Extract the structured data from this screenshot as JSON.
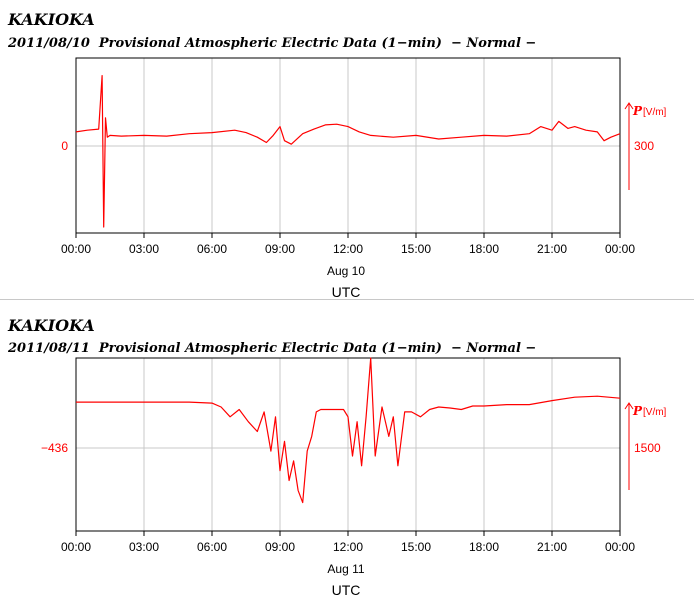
{
  "charts": [
    {
      "station": "KAKIOKA",
      "subtitle": "2011/08/10  Provisional Atmospheric Electric Data (1−min)  − Normal −",
      "date_label": "Aug 10",
      "xlabel": "UTC",
      "baseline_label": "0",
      "scale_label": "300",
      "param": "P",
      "unit": "[V/m]",
      "color": "#ff0000"
    },
    {
      "station": "KAKIOKA",
      "subtitle": "2011/08/11  Provisional Atmospheric Electric Data (1−min)  − Normal −",
      "date_label": "Aug 11",
      "xlabel": "UTC",
      "baseline_label": "−436",
      "scale_label": "1500",
      "param": "P",
      "unit": "[V/m]",
      "color": "#ff0000"
    }
  ],
  "chart_data": [
    {
      "type": "line",
      "title": "2011/08/10  Provisional Atmospheric Electric Data (1−min)  − Normal −",
      "xlabel": "UTC",
      "ylabel": "P [V/m]",
      "x_ticks": [
        "00:00",
        "03:00",
        "06:00",
        "09:00",
        "12:00",
        "15:00",
        "18:00",
        "21:00",
        "00:00"
      ],
      "xlim_hours": [
        0,
        24
      ],
      "baseline_value": 0,
      "scale_bar": 300,
      "ylim": [
        -280,
        250
      ],
      "grid": true,
      "series": [
        {
          "x_hours": [
            0,
            0.5,
            1.0,
            1.15,
            1.22,
            1.3,
            1.38,
            1.5,
            2,
            3,
            4,
            5,
            6,
            7,
            7.5,
            8,
            8.4,
            8.7,
            9.0,
            9.2,
            9.5,
            10,
            10.5,
            11,
            11.5,
            12,
            12.5,
            13,
            14,
            15,
            16,
            17,
            18,
            19,
            20,
            20.5,
            21,
            21.3,
            21.7,
            22,
            22.5,
            23,
            23.3,
            23.6,
            24
          ],
          "values": [
            40,
            45,
            48,
            200,
            -230,
            80,
            25,
            30,
            28,
            30,
            28,
            35,
            38,
            45,
            38,
            25,
            10,
            30,
            55,
            15,
            5,
            35,
            48,
            60,
            62,
            55,
            40,
            30,
            25,
            30,
            20,
            25,
            30,
            28,
            35,
            55,
            45,
            70,
            50,
            55,
            45,
            40,
            15,
            25,
            35
          ]
        }
      ]
    },
    {
      "type": "line",
      "title": "2011/08/11  Provisional Atmospheric Electric Data (1−min)  − Normal −",
      "xlabel": "UTC",
      "ylabel": "P [V/m]",
      "x_ticks": [
        "00:00",
        "03:00",
        "06:00",
        "09:00",
        "12:00",
        "15:00",
        "18:00",
        "21:00",
        "00:00"
      ],
      "xlim_hours": [
        0,
        24
      ],
      "baseline_value": -436,
      "scale_bar": 1500,
      "ylim": [
        -1550,
        1400
      ],
      "grid": true,
      "series": [
        {
          "x_hours": [
            0,
            2,
            4,
            5,
            6,
            6.4,
            6.8,
            7.2,
            7.6,
            8.0,
            8.3,
            8.6,
            8.8,
            9.0,
            9.2,
            9.4,
            9.6,
            9.8,
            10.0,
            10.2,
            10.4,
            10.6,
            10.8,
            11.0,
            11.4,
            11.8,
            12.0,
            12.2,
            12.4,
            12.6,
            12.8,
            13.0,
            13.2,
            13.5,
            13.8,
            14.0,
            14.2,
            14.5,
            14.8,
            15.2,
            15.6,
            16,
            16.5,
            17,
            17.5,
            18,
            19,
            20,
            21,
            22,
            23,
            24
          ],
          "values": [
            500,
            500,
            500,
            500,
            480,
            400,
            200,
            350,
            100,
            -100,
            300,
            -500,
            200,
            -900,
            -300,
            -1100,
            -700,
            -1300,
            -1550,
            -500,
            -200,
            300,
            350,
            350,
            350,
            350,
            200,
            -600,
            100,
            -800,
            200,
            1400,
            -600,
            400,
            -200,
            200,
            -800,
            300,
            300,
            200,
            350,
            400,
            380,
            350,
            420,
            420,
            450,
            450,
            530,
            600,
            620,
            580
          ]
        }
      ]
    }
  ]
}
